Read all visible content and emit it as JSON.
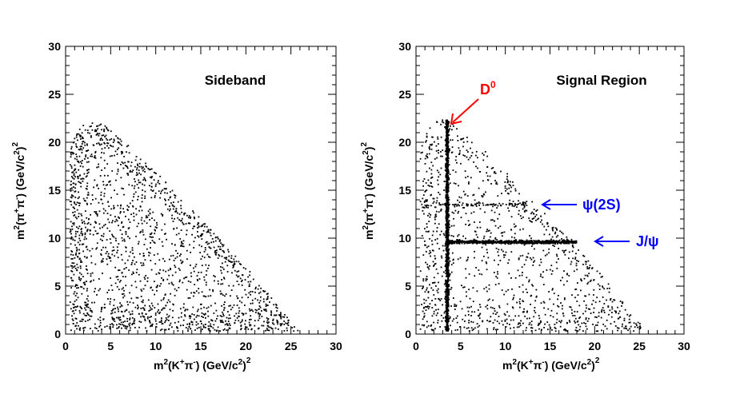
{
  "chart_data": [
    {
      "type": "scatter",
      "title": "Sideband",
      "xlabel_main": "m",
      "xlabel_mid": "(K",
      "xlabel_mid2": "π",
      "xlabel_end": ") (GeV/c",
      "xlabel_close": ")",
      "ylabel_main": "m",
      "ylabel_mid": "(π",
      "ylabel_mid2": "π",
      "ylabel_end": ") (GeV/c",
      "ylabel_close": ")",
      "sup_2": "2",
      "sup_plus": "+",
      "sup_minus": "-",
      "xlim": [
        0,
        30
      ],
      "ylim": [
        0,
        30
      ],
      "xticks": [
        "0",
        "5",
        "10",
        "15",
        "20",
        "25",
        "30"
      ],
      "yticks": [
        "0",
        "5",
        "10",
        "15",
        "20",
        "25",
        "30"
      ],
      "grid": false,
      "description_of_points": "Dalitz-plot events filling a triangular region bounded by x≈0.5, y≈0.3 and the kinematic edge from (2.5, 22.5) to (26, 0)",
      "points_distribution": {
        "boundary": [
          [
            0.5,
            0.3
          ],
          [
            0.5,
            19.5
          ],
          [
            1.5,
            21.5
          ],
          [
            2.5,
            22.5
          ],
          [
            4,
            22
          ],
          [
            6,
            20.5
          ],
          [
            9,
            18
          ],
          [
            12,
            15
          ],
          [
            15,
            12
          ],
          [
            18,
            9
          ],
          [
            21,
            6
          ],
          [
            24,
            2.5
          ],
          [
            26,
            0.3
          ]
        ],
        "approx_point_count": 1900
      }
    },
    {
      "type": "scatter",
      "title": "Signal Region",
      "xlabel_main": "m",
      "xlabel_mid": "(K",
      "xlabel_mid2": "π",
      "xlabel_end": ") (GeV/c",
      "xlabel_close": ")",
      "ylabel_main": "m",
      "ylabel_mid": "(π",
      "ylabel_mid2": "π",
      "ylabel_end": ") (GeV/c",
      "ylabel_close": ")",
      "sup_2": "2",
      "sup_plus": "+",
      "sup_minus": "-",
      "xlim": [
        0,
        30
      ],
      "ylim": [
        0,
        30
      ],
      "xticks": [
        "0",
        "5",
        "10",
        "15",
        "20",
        "25",
        "30"
      ],
      "yticks": [
        "0",
        "5",
        "10",
        "15",
        "20",
        "25",
        "30"
      ],
      "grid": false,
      "bands": [
        {
          "label": "D",
          "label_sup": "0",
          "orientation": "vertical",
          "x": 3.5,
          "y_range": [
            0.3,
            22.3
          ],
          "color": "#ff0000"
        },
        {
          "label": "J/ψ",
          "orientation": "horizontal",
          "y": 9.6,
          "x_range": [
            3.5,
            18
          ],
          "color": "#0000ff"
        },
        {
          "label": "ψ(2S)",
          "orientation": "horizontal",
          "y": 13.5,
          "x_range": [
            1,
            12.5
          ],
          "color": "#0000ff"
        }
      ],
      "points_distribution": {
        "boundary": [
          [
            0.5,
            0.3
          ],
          [
            0.5,
            19.5
          ],
          [
            1.5,
            21.5
          ],
          [
            2.5,
            22.5
          ],
          [
            4,
            22
          ],
          [
            6,
            20.5
          ],
          [
            9,
            18
          ],
          [
            12,
            15
          ],
          [
            15,
            12
          ],
          [
            18,
            9
          ],
          [
            21,
            6
          ],
          [
            24,
            2.5
          ],
          [
            26,
            0.3
          ]
        ],
        "approx_point_count": 1200
      }
    }
  ]
}
